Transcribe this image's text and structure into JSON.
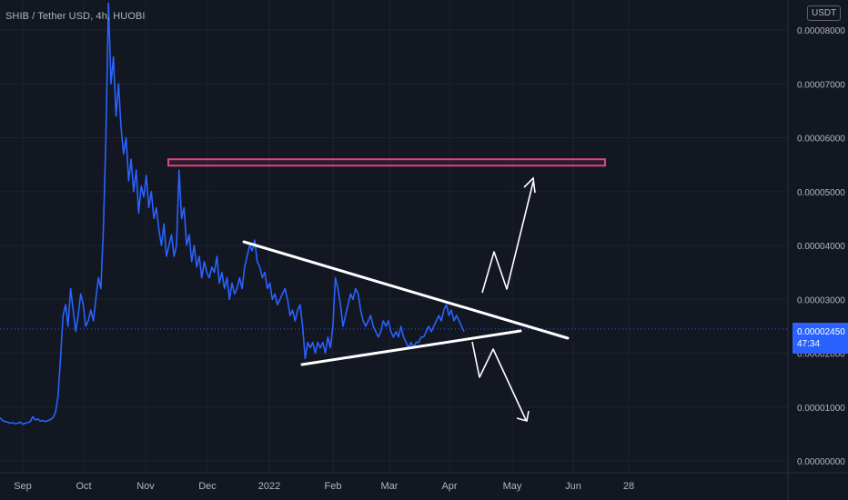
{
  "header": {
    "title": "SHIB / Tether USD, 4h, HUOBI",
    "unit_badge": "USDT"
  },
  "current_price": {
    "value": "0.00002450",
    "countdown": "47:34"
  },
  "colors": {
    "background": "#131722",
    "price_line": "#2962ff",
    "price_label_bg": "#2962ff",
    "resistance_box": "#e0457b",
    "trendline": "#ffffff",
    "axis_text": "#b2b5be"
  },
  "chart_data": {
    "type": "line",
    "title": "SHIB / Tether USD, 4h, HUOBI",
    "xlabel": "",
    "ylabel": "",
    "y_unit": "USDT",
    "ylim": [
      0,
      8.5e-05
    ],
    "grid": true,
    "x_ticks": [
      "Sep",
      "Oct",
      "Nov",
      "Dec",
      "2022",
      "Feb",
      "Mar",
      "Apr",
      "May",
      "Jun",
      "28"
    ],
    "y_ticks": [
      "0.00000000",
      "0.00001000",
      "0.00002000",
      "0.00003000",
      "0.00004000",
      "0.00005000",
      "0.00006000",
      "0.00007000",
      "0.00008000"
    ],
    "y_tick_values": [
      0,
      1e-05,
      2e-05,
      3e-05,
      4e-05,
      5e-05,
      6e-05,
      7e-05,
      8e-05
    ],
    "series": [
      {
        "values": [
          8e-06,
          7.5e-06,
          7.3e-06,
          7.2e-06,
          7e-06,
          7.1e-06,
          6.9e-06,
          7e-06,
          7.2e-06,
          6.8e-06,
          7e-06,
          7.1e-06,
          7.3e-06,
          8.2e-06,
          7.6e-06,
          7.8e-06,
          7.4e-06,
          7.5e-06,
          7.3e-06,
          7.5e-06,
          7.7e-06,
          8e-06,
          9e-06,
          1.2e-05,
          1.9e-05,
          2.7e-05,
          2.9e-05,
          2.5e-05,
          3.2e-05,
          2.8e-05,
          2.4e-05,
          2.7e-05,
          3.1e-05,
          2.9e-05,
          2.5e-05,
          2.6e-05,
          2.8e-05,
          2.6e-05,
          3e-05,
          3.4e-05,
          3.2e-05,
          4.3e-05,
          6e-05,
          8.5e-05,
          7e-05,
          7.5e-05,
          6.4e-05,
          7e-05,
          6.2e-05,
          5.7e-05,
          6e-05,
          5.2e-05,
          5.6e-05,
          5e-05,
          5.4e-05,
          4.6e-05,
          5.1e-05,
          4.9e-05,
          5.3e-05,
          4.7e-05,
          5e-05,
          4.5e-05,
          4.7e-05,
          4.3e-05,
          4e-05,
          4.4e-05,
          3.8e-05,
          4e-05,
          4.2e-05,
          3.8e-05,
          4e-05,
          5.4e-05,
          4.5e-05,
          4.7e-05,
          4e-05,
          4.2e-05,
          3.7e-05,
          4e-05,
          3.6e-05,
          3.8e-05,
          3.4e-05,
          3.7e-05,
          3.5e-05,
          3.4e-05,
          3.6e-05,
          3.5e-05,
          3.8e-05,
          3.3e-05,
          3.5e-05,
          3.2e-05,
          3.4e-05,
          3e-05,
          3.3e-05,
          3.1e-05,
          3.2e-05,
          3.4e-05,
          3.2e-05,
          3.6e-05,
          3.8e-05,
          4e-05,
          3.9e-05,
          4.1e-05,
          3.7e-05,
          3.6e-05,
          3.4e-05,
          3.5e-05,
          3.2e-05,
          3.3e-05,
          3e-05,
          3.1e-05,
          2.9e-05,
          3e-05,
          3.1e-05,
          3.2e-05,
          3e-05,
          2.7e-05,
          2.8e-05,
          2.6e-05,
          2.8e-05,
          2.9e-05,
          2.5e-05,
          1.9e-05,
          2.2e-05,
          2.1e-05,
          2.2e-05,
          2e-05,
          2.2e-05,
          2.1e-05,
          2.2e-05,
          2e-05,
          2.3e-05,
          2.1e-05,
          2.5e-05,
          3.4e-05,
          3.2e-05,
          2.9e-05,
          2.5e-05,
          2.7e-05,
          2.9e-05,
          3.1e-05,
          3e-05,
          3.2e-05,
          3.1e-05,
          2.8e-05,
          2.6e-05,
          2.5e-05,
          2.6e-05,
          2.7e-05,
          2.5e-05,
          2.4e-05,
          2.3e-05,
          2.4e-05,
          2.6e-05,
          2.5e-05,
          2.6e-05,
          2.4e-05,
          2.3e-05,
          2.4e-05,
          2.3e-05,
          2.5e-05,
          2.3e-05,
          2.2e-05,
          2.1e-05,
          2.2e-05,
          2.1e-05,
          2.2e-05,
          2.2e-05,
          2.3e-05,
          2.3e-05,
          2.4e-05,
          2.5e-05,
          2.4e-05,
          2.5e-05,
          2.6e-05,
          2.7e-05,
          2.6e-05,
          2.8e-05,
          2.9e-05,
          2.7e-05,
          2.8e-05,
          2.6e-05,
          2.7e-05,
          2.6e-05,
          2.5e-05,
          2.4e-05
        ]
      }
    ],
    "current_value": 2.45e-05,
    "resistance_zone": [
      5.5e-05,
      5.6e-05
    ],
    "annotations": [
      "descending upper trendline",
      "ascending lower trendline",
      "breakout-up arrow",
      "breakdown arrow"
    ]
  }
}
